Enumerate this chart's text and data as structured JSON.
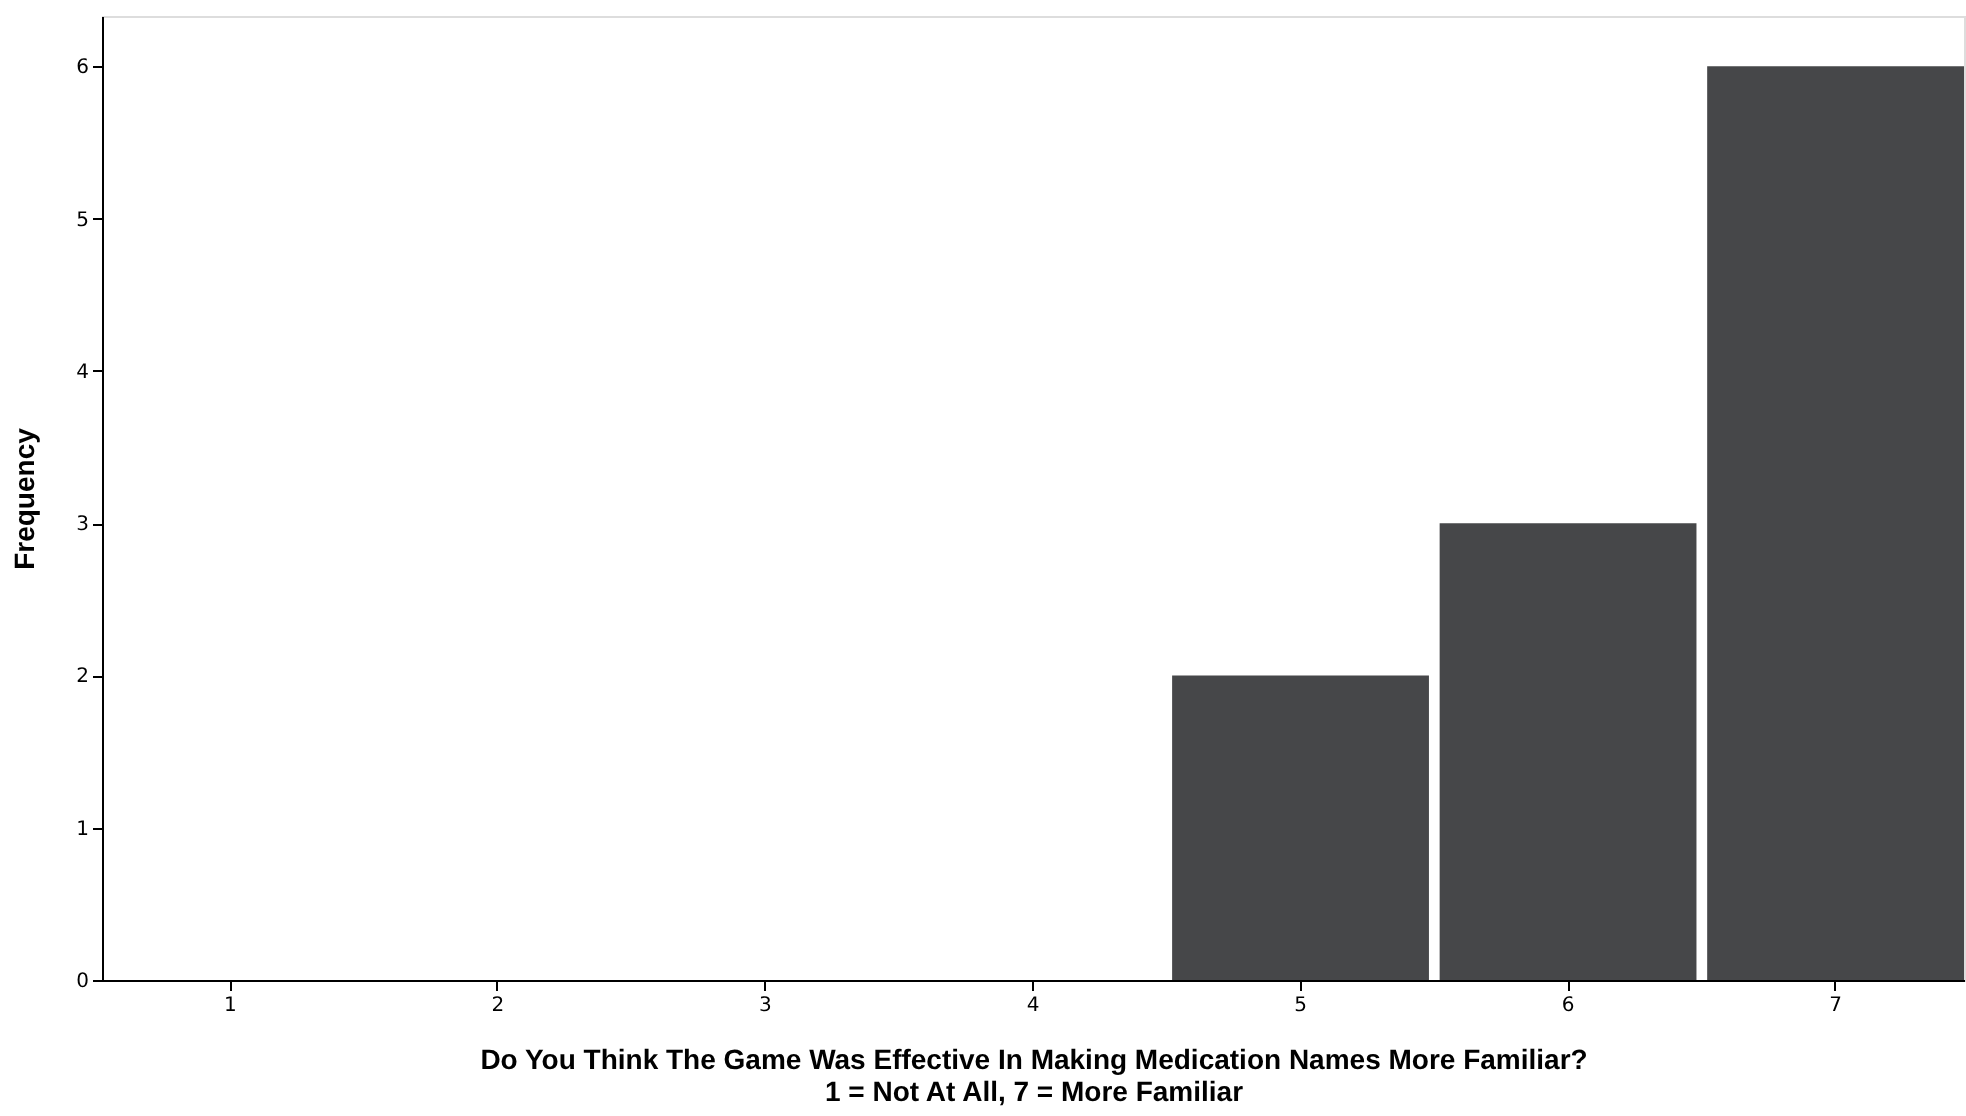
{
  "chart_data": {
    "type": "bar",
    "categories": [
      "1",
      "2",
      "3",
      "4",
      "5",
      "6",
      "7"
    ],
    "values": [
      0,
      0,
      0,
      0,
      2,
      3,
      6
    ],
    "color": "#464749",
    "xlabel": "Do You Think The Game Was Effective In Making Medication Names More Familiar?\n1 = Not At All, 7 = More Familiar",
    "ylabel": "Frequency",
    "ylim": [
      0,
      6.33
    ],
    "yticks": [
      0,
      1,
      2,
      3,
      4,
      5,
      6
    ],
    "grid": false
  }
}
